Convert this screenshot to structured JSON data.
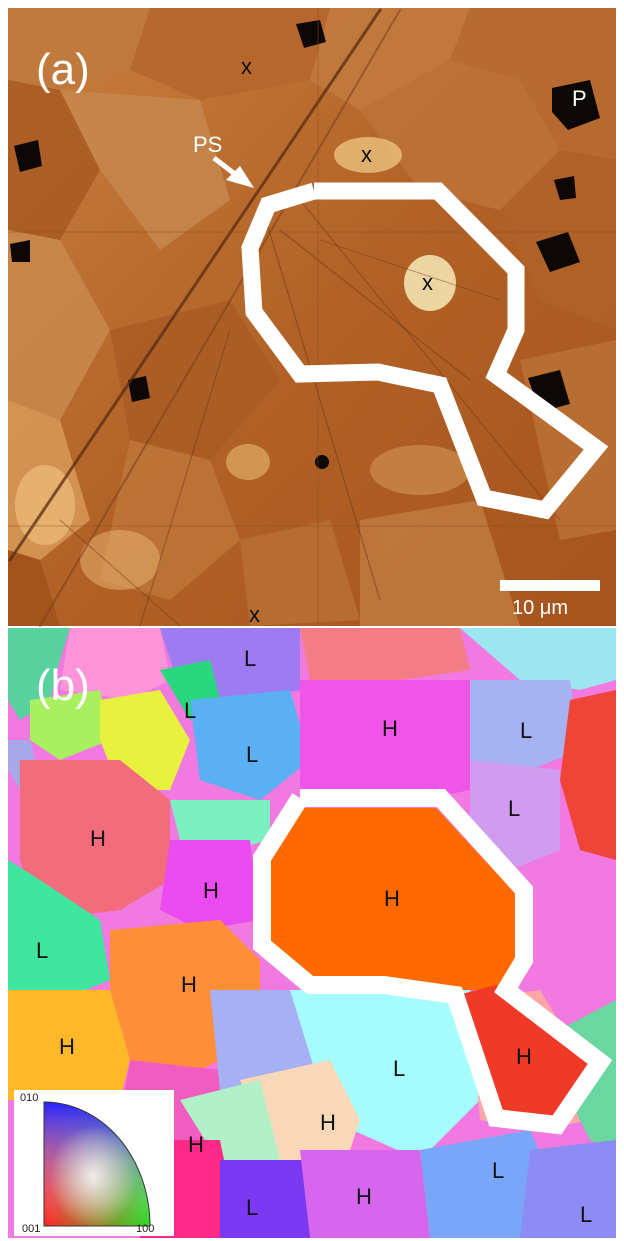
{
  "panel_a": {
    "label": "(a)",
    "markers": {
      "x": "x",
      "ps": "PS",
      "p": "P"
    },
    "scale_bar": "10 μm"
  },
  "panel_b": {
    "label": "(b)",
    "grain_labels": {
      "H": "H",
      "L": "L"
    },
    "ipf_key": {
      "top": "010",
      "bottom_left": "001",
      "bottom_right": "100"
    }
  },
  "colors": {
    "outline": "#ffffff",
    "afm_base": "#b8692a",
    "highlight_grain_h": "#ff6a00",
    "highlight_grain_2": "#f03a28"
  }
}
